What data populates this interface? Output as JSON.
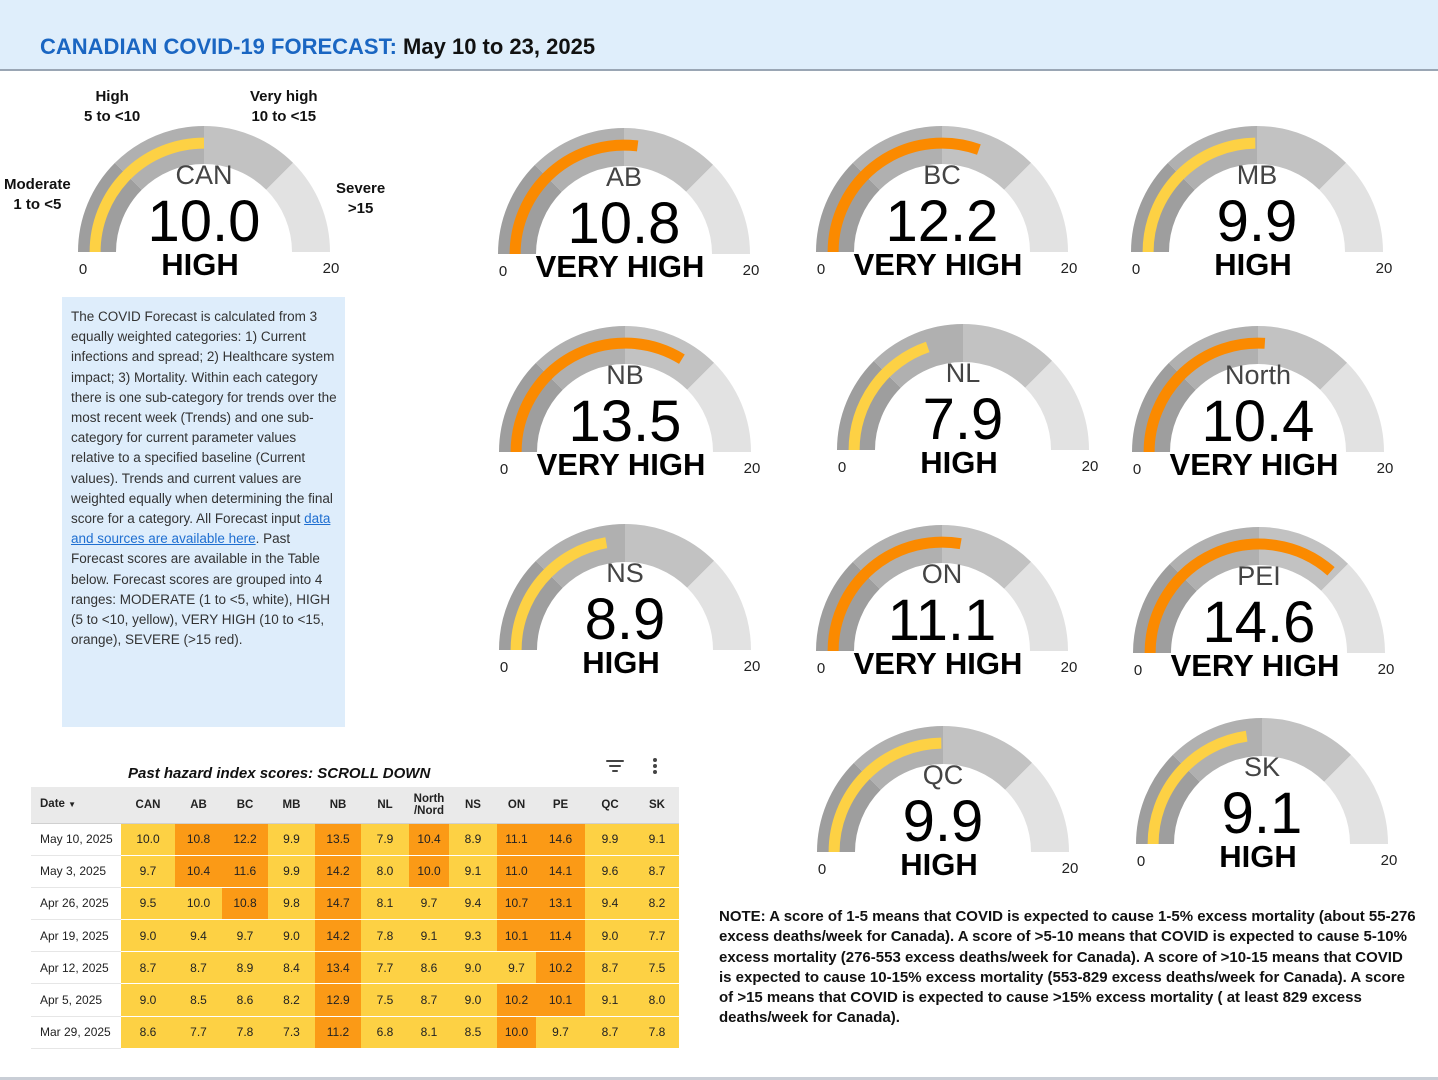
{
  "header": {
    "title_main": "CANADIAN COVID-19 FORECAST:",
    "title_dates": "May 10 to 23, 2025"
  },
  "colors": {
    "header_bg": "#dfeefb",
    "title_blue": "#1a66c2",
    "high_yellow": "#fdd144",
    "very_high_orange": "#fb8a00",
    "table_yellow": "#fdd144",
    "table_orange": "#fb9a16",
    "gauge_band_dark": "#9e9e9e",
    "gauge_band_mid": "#c2c2c2",
    "gauge_band_light": "#e2e2e2",
    "info_bg": "#deedfb"
  },
  "range_labels": {
    "moderate": {
      "name": "Moderate",
      "range": "1 to <5"
    },
    "high": {
      "name": "High",
      "range": "5 to <10"
    },
    "very_high": {
      "name": "Very high",
      "range": "10 to <15"
    },
    "severe": {
      "name": "Severe",
      "range": ">15"
    }
  },
  "gauge_scale": {
    "min": "0",
    "max": "20"
  },
  "gauges": {
    "CAN": {
      "region": "CAN",
      "value": "10.0",
      "level": "HIGH",
      "score": 10.0,
      "fill_color": "#fdd144"
    },
    "AB": {
      "region": "AB",
      "value": "10.8",
      "level": "VERY HIGH",
      "score": 10.8,
      "fill_color": "#fb8a00"
    },
    "BC": {
      "region": "BC",
      "value": "12.2",
      "level": "VERY HIGH",
      "score": 12.2,
      "fill_color": "#fb8a00"
    },
    "MB": {
      "region": "MB",
      "value": "9.9",
      "level": "HIGH",
      "score": 9.9,
      "fill_color": "#fdd144"
    },
    "NB": {
      "region": "NB",
      "value": "13.5",
      "level": "VERY HIGH",
      "score": 13.5,
      "fill_color": "#fb8a00"
    },
    "NL": {
      "region": "NL",
      "value": "7.9",
      "level": "HIGH",
      "score": 7.9,
      "fill_color": "#fdd144"
    },
    "North": {
      "region": "North",
      "value": "10.4",
      "level": "VERY HIGH",
      "score": 10.4,
      "fill_color": "#fb8a00"
    },
    "NS": {
      "region": "NS",
      "value": "8.9",
      "level": "HIGH",
      "score": 8.9,
      "fill_color": "#fdd144"
    },
    "ON": {
      "region": "ON",
      "value": "11.1",
      "level": "VERY HIGH",
      "score": 11.1,
      "fill_color": "#fb8a00"
    },
    "PEI": {
      "region": "PEI",
      "value": "14.6",
      "level": "VERY HIGH",
      "score": 14.6,
      "fill_color": "#fb8a00"
    },
    "QC": {
      "region": "QC",
      "value": "9.9",
      "level": "HIGH",
      "score": 9.9,
      "fill_color": "#fdd144"
    },
    "SK": {
      "region": "SK",
      "value": "9.1",
      "level": "HIGH",
      "score": 9.1,
      "fill_color": "#fdd144"
    }
  },
  "info": {
    "text_before_link": "The COVID Forecast is calculated from 3 equally weighted categories: 1) Current infections and spread; 2) Healthcare system impact; 3) Mortality. Within each category there is one sub-category for trends over the most recent week (Trends) and one sub-category for current parameter values relative to a specified baseline (Current values). Trends and current values are weighted equally when determining the final score for a category. All Forecast input ",
    "link_text": "data and sources are available here",
    "text_after_link": ". Past Forecast scores are available in the Table below. Forecast scores are grouped into 4 ranges: MODERATE (1 to <5, white), HIGH (5 to <10, yellow), VERY HIGH (10 to <15, orange), SEVERE (>15 red)."
  },
  "table": {
    "title": "Past hazard index scores: SCROLL DOWN",
    "filter_icon": "filter-icon",
    "more_icon": "more-vert-icon",
    "headers": {
      "date": "Date",
      "can": "CAN",
      "ab": "AB",
      "bc": "BC",
      "mb": "MB",
      "nb": "NB",
      "nl": "NL",
      "north_1": "North",
      "north_2": "/Nord",
      "ns": "NS",
      "on": "ON",
      "pe": "PE",
      "qc": "QC",
      "sk": "SK"
    },
    "rows": [
      {
        "date": "May 10, 2025",
        "vals": [
          "10.0",
          "10.8",
          "12.2",
          "9.9",
          "13.5",
          "7.9",
          "10.4",
          "8.9",
          "11.1",
          "14.6",
          "9.9",
          "9.1"
        ]
      },
      {
        "date": "May 3, 2025",
        "vals": [
          "9.7",
          "10.4",
          "11.6",
          "9.9",
          "14.2",
          "8.0",
          "10.0",
          "9.1",
          "11.0",
          "14.1",
          "9.6",
          "8.7"
        ]
      },
      {
        "date": "Apr 26, 2025",
        "vals": [
          "9.5",
          "10.0",
          "10.8",
          "9.8",
          "14.7",
          "8.1",
          "9.7",
          "9.4",
          "10.7",
          "13.1",
          "9.4",
          "8.2"
        ]
      },
      {
        "date": "Apr 19, 2025",
        "vals": [
          "9.0",
          "9.4",
          "9.7",
          "9.0",
          "14.2",
          "7.8",
          "9.1",
          "9.3",
          "10.1",
          "11.4",
          "9.0",
          "7.7"
        ]
      },
      {
        "date": "Apr 12, 2025",
        "vals": [
          "8.7",
          "8.7",
          "8.9",
          "8.4",
          "13.4",
          "7.7",
          "8.6",
          "9.0",
          "9.7",
          "10.2",
          "8.7",
          "7.5"
        ]
      },
      {
        "date": "Apr 5, 2025",
        "vals": [
          "9.0",
          "8.5",
          "8.6",
          "8.2",
          "12.9",
          "7.5",
          "8.7",
          "9.0",
          "10.2",
          "10.1",
          "9.1",
          "8.0"
        ]
      },
      {
        "date": "Mar 29, 2025",
        "vals": [
          "8.6",
          "7.7",
          "7.8",
          "7.3",
          "11.2",
          "6.8",
          "8.1",
          "8.5",
          "10.0",
          "9.7",
          "8.7",
          "7.8"
        ]
      }
    ],
    "cell_colors": [
      [
        "y",
        "o",
        "o",
        "y",
        "o",
        "y",
        "o",
        "y",
        "o",
        "o",
        "y",
        "y"
      ],
      [
        "y",
        "o",
        "o",
        "y",
        "o",
        "y",
        "o",
        "y",
        "o",
        "o",
        "y",
        "y"
      ],
      [
        "y",
        "y",
        "o",
        "y",
        "o",
        "y",
        "y",
        "y",
        "o",
        "o",
        "y",
        "y"
      ],
      [
        "y",
        "y",
        "y",
        "y",
        "o",
        "y",
        "y",
        "y",
        "o",
        "o",
        "y",
        "y"
      ],
      [
        "y",
        "y",
        "y",
        "y",
        "o",
        "y",
        "y",
        "y",
        "y",
        "o",
        "y",
        "y"
      ],
      [
        "y",
        "y",
        "y",
        "y",
        "o",
        "y",
        "y",
        "y",
        "o",
        "o",
        "y",
        "y"
      ],
      [
        "y",
        "y",
        "y",
        "y",
        "o",
        "y",
        "y",
        "y",
        "o",
        "y",
        "y",
        "y"
      ]
    ]
  },
  "note": "NOTE: A score of 1-5 means that COVID is expected to cause 1-5% excess mortality (about 55-276 excess deaths/week for Canada). A score of >5-10 means that COVID is expected to cause 5-10% excess mortality (276-553 excess deaths/week for Canada). A score of >10-15 means that COVID is expected to cause 10-15% excess mortality (553-829 excess deaths/week for Canada). A score of >15 means that COVID is expected to cause >15% excess mortality ( at least 829 excess deaths/week for Canada)."
}
